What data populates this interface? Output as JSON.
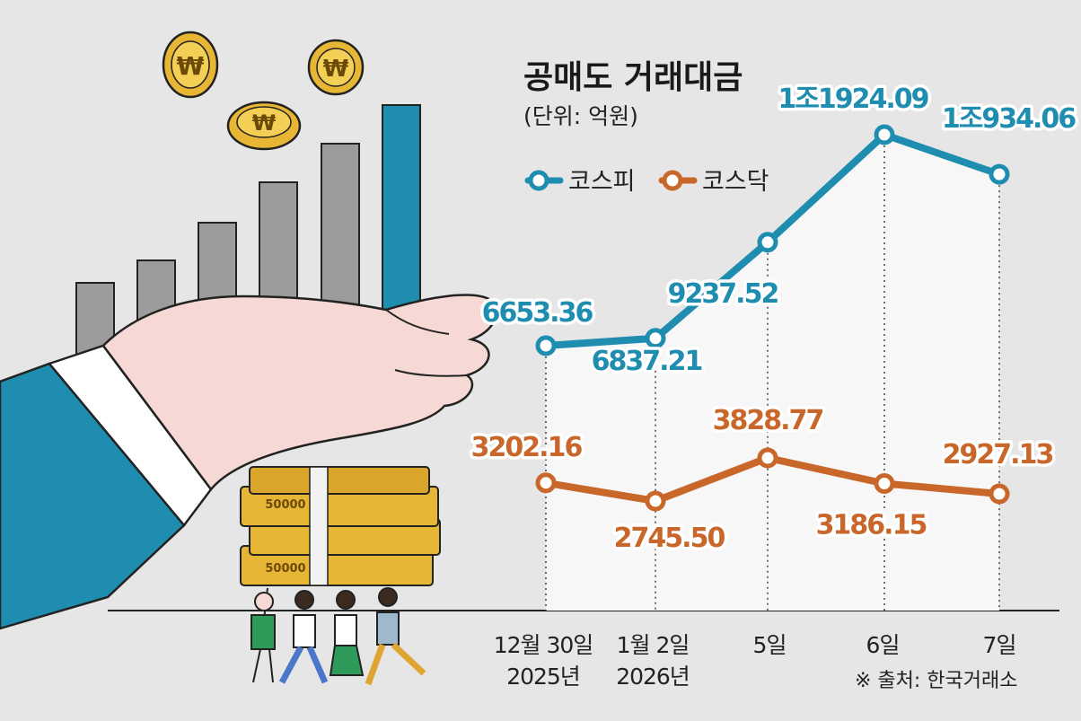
{
  "title": "공매도 거래대금",
  "unit": "(단위: 억원)",
  "source": "※ 출처: 한국거래소",
  "colors": {
    "kospi": "#1f8db0",
    "kosdaq": "#c9672a",
    "background": "#e6e6e6"
  },
  "illustration": {
    "icons": [
      "coin-icon",
      "coin-icon",
      "coin-icon",
      "bar-graph-icon",
      "open-hand-icon",
      "money-stack-icon",
      "people-icon"
    ],
    "coin_symbol": "₩",
    "banknote_text": "50000"
  },
  "chart_data": {
    "type": "line",
    "title": "공매도 거래대금",
    "ylabel": "(단위: 억원)",
    "xlabel": "",
    "categories": [
      {
        "line1": "12월 30일",
        "line2": "2025년"
      },
      {
        "line1": "1월 2일",
        "line2": "2026년"
      },
      {
        "line1": "5일",
        "line2": ""
      },
      {
        "line1": "6일",
        "line2": ""
      },
      {
        "line1": "7일",
        "line2": ""
      }
    ],
    "ylim": [
      0,
      12500
    ],
    "legend_position": "top-left",
    "grid": false,
    "series": [
      {
        "name": "코스피",
        "key": "kospi",
        "values": [
          6653.36,
          6837.21,
          9237.52,
          11924.09,
          10934.06
        ],
        "labels": [
          "6653.36",
          "6837.21",
          "9237.52",
          "1조1924.09",
          "1조934.06"
        ]
      },
      {
        "name": "코스닥",
        "key": "kosdaq",
        "values": [
          3202.16,
          2745.5,
          3828.77,
          3186.15,
          2927.13
        ],
        "labels": [
          "3202.16",
          "2745.50",
          "3828.77",
          "3186.15",
          "2927.13"
        ]
      }
    ]
  }
}
